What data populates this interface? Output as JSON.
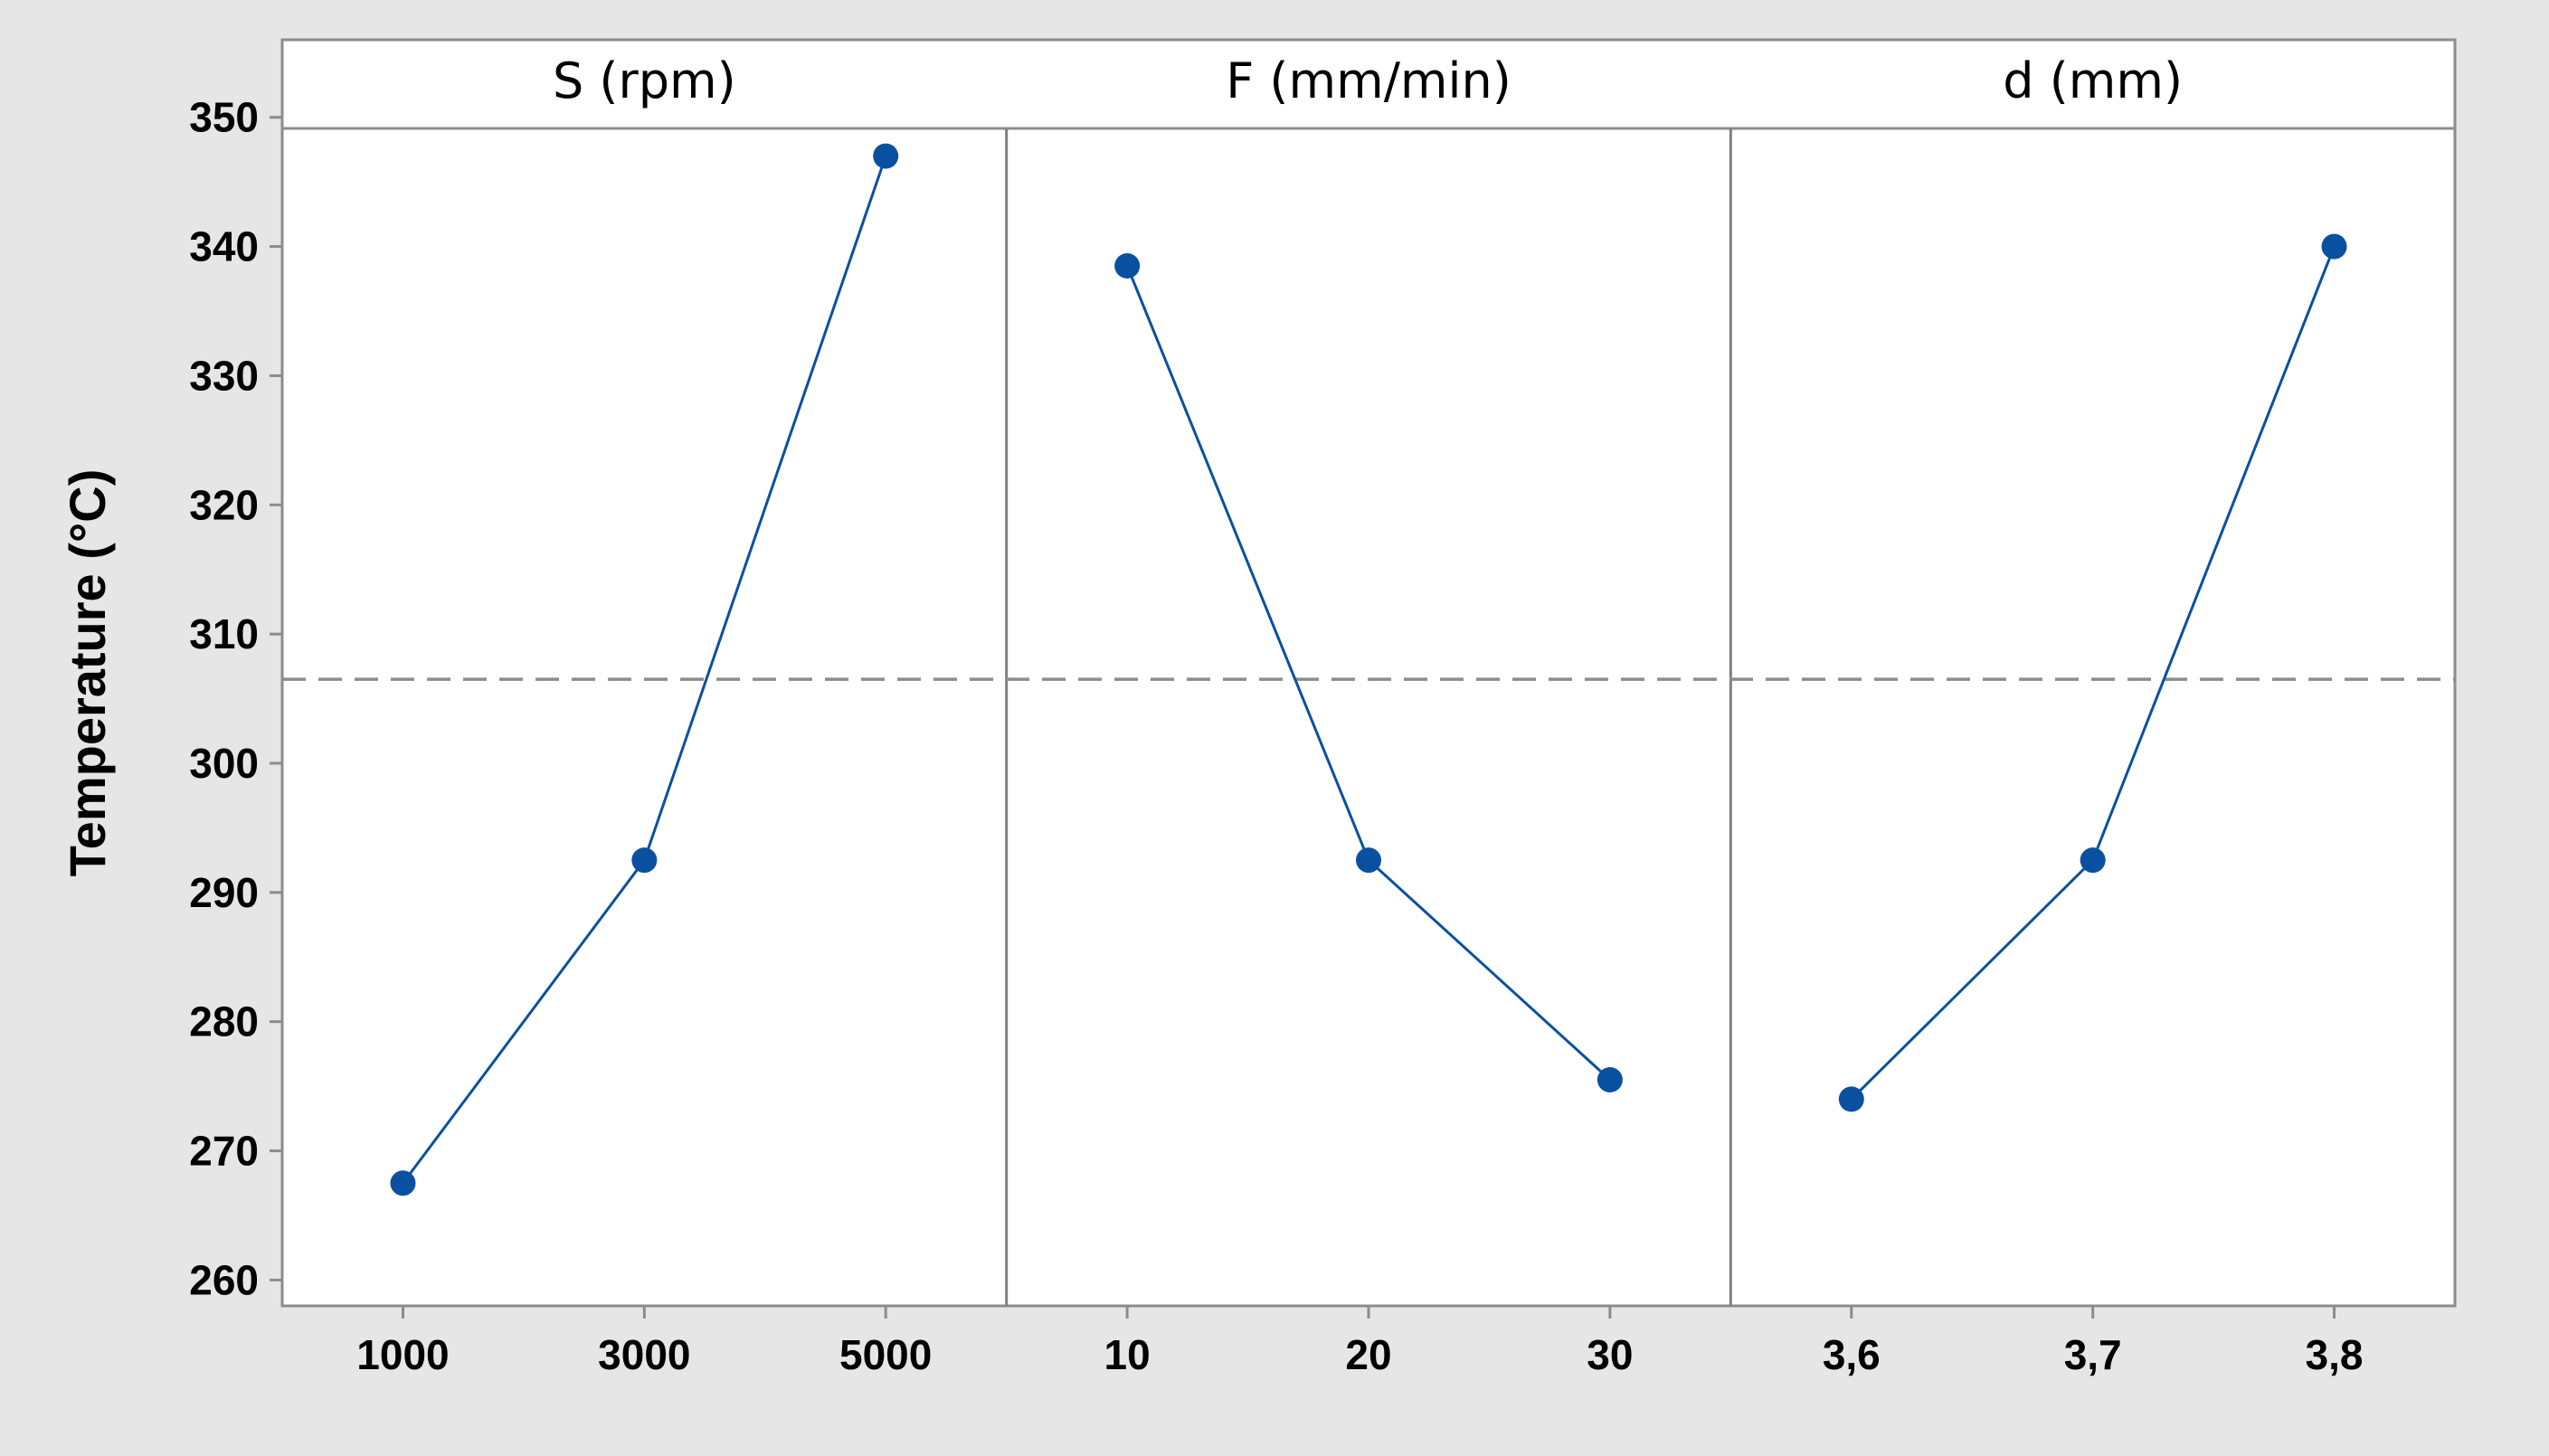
{
  "chart_data": {
    "type": "line",
    "ylabel": "Temperature (°C)",
    "ylim": [
      258,
      356
    ],
    "yticks": [
      "260",
      "270",
      "280",
      "290",
      "300",
      "310",
      "320",
      "330",
      "340",
      "350"
    ],
    "reference_line": {
      "y": 306.5,
      "style": "dashed"
    },
    "grid": false,
    "panels": [
      {
        "title": "S (rpm)",
        "categories": [
          "1000",
          "3000",
          "5000"
        ],
        "values": [
          267.5,
          292.5,
          347
        ]
      },
      {
        "title": "F (mm/min)",
        "categories": [
          "10",
          "20",
          "30"
        ],
        "values": [
          338.5,
          292.5,
          275.5
        ]
      },
      {
        "title": "d (mm)",
        "categories": [
          "3,6",
          "3,7",
          "3,8"
        ],
        "values": [
          274,
          292.5,
          340
        ]
      }
    ]
  },
  "colors": {
    "series": "#0a50a1",
    "outer_frame": "#e6e6e6",
    "plot_background": "#ffffff",
    "reference_line": "#8c8c8c",
    "panel_divider": "#808080",
    "axis_line": "#8c8c8c"
  }
}
